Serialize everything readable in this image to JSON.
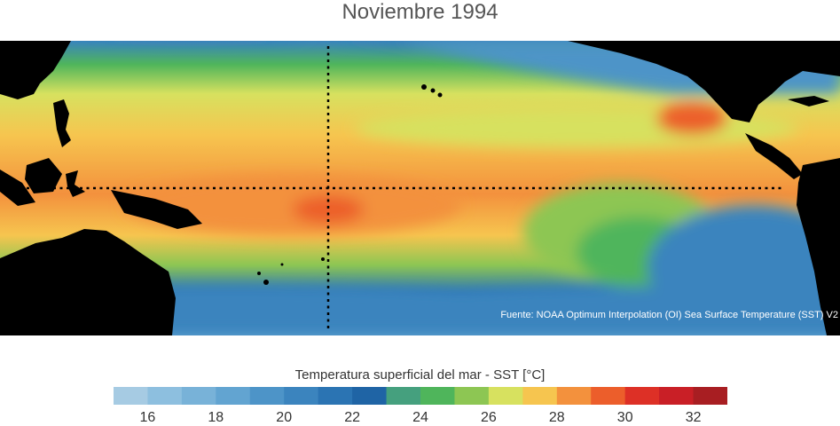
{
  "title": "Noviembre 1994",
  "credit": "Fuente: NOAA Optimum Interpolation (OI) Sea Surface Temperature (SST) V2",
  "colorbar": {
    "label": "Temperatura superficial del mar - SST  [°C]",
    "min": 15,
    "max": 33,
    "colors": [
      "#a6cbe3",
      "#8dbfdf",
      "#78b2d8",
      "#62a4d1",
      "#4d94c8",
      "#3b84be",
      "#2b74b3",
      "#1f64a5",
      "#45a07e",
      "#4fb55b",
      "#8dc653",
      "#d7e15f",
      "#f6c54f",
      "#f3913d",
      "#ec5e2b",
      "#dd3026",
      "#c91f26",
      "#a81e22"
    ],
    "tick_labels": [
      "16",
      "18",
      "20",
      "22",
      "24",
      "26",
      "28",
      "30",
      "32"
    ]
  }
}
